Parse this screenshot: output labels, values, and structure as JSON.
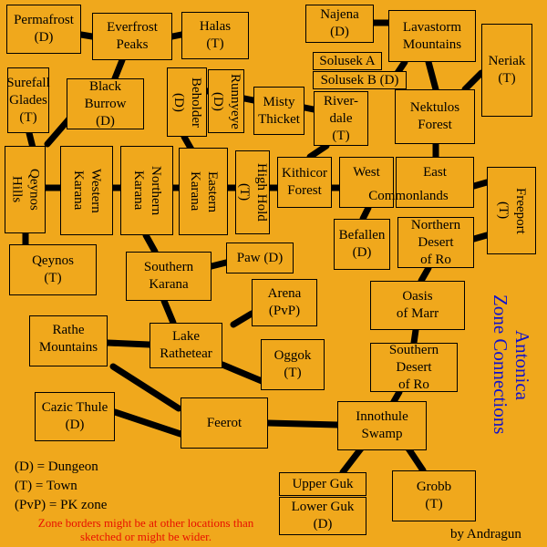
{
  "zones": {
    "permafrost": "Permafrost\n(D)",
    "everfrost": "Everfrost\nPeaks",
    "halas": "Halas\n(T)",
    "najena": "Najena\n(D)",
    "lavastorm": "Lavastorm\nMountains",
    "solusek_a": "Solusek A",
    "solusek_b": "Solusek B (D)",
    "neriak": "Neriak\n(T)",
    "surefall": "Surefall\nGlades\n(T)",
    "black_burrow": "Black\nBurrow\n(D)",
    "beholder": "Beholder\n(D)",
    "runnyeye": "Runnyeye\n(D)",
    "misty": "Misty\nThicket",
    "riverdale": "River-\ndale\n(T)",
    "nektulos": "Nektulos\nForest",
    "qeynos_hills": "Qeynos\nHills",
    "western_karana": "Western\nKarana",
    "northern_karana": "Northern\nKarana",
    "eastern_karana": "Eastern\nKarana",
    "highhold": "High Hold\n(T)",
    "kithicor": "Kithicor\nForest",
    "west_commonlands": "West",
    "east_commonlands": "East",
    "commonlands": "Commonlands",
    "freeport": "Freeport\n(T)",
    "befallen": "Befallen\n(D)",
    "northern_ro": "Northern\nDesert\nof Ro",
    "qeynos": "Qeynos\n(T)",
    "southern_karana": "Southern\nKarana",
    "paw": "Paw (D)",
    "arena": "Arena\n(PvP)",
    "oasis": "Oasis\nof Marr",
    "rathe_mountains": "Rathe\nMountains",
    "lake_rathetear": "Lake\nRathetear",
    "oggok": "Oggok\n(T)",
    "southern_ro": "Southern\nDesert\nof Ro",
    "cazic_thule": "Cazic Thule\n(D)",
    "feerot": "Feerot",
    "innothule": "Innothule\nSwamp",
    "upper_guk": "Upper Guk",
    "lower_guk": "Lower Guk\n(D)",
    "grobb": "Grobb\n(T)"
  },
  "title_line1": "Antonica",
  "title_line2": "Zone Connections",
  "legend": {
    "dungeon": "(D) = Dungeon",
    "town": "(T) = Town",
    "pvp": "(PvP) = PK zone"
  },
  "note": "Zone borders might be at other locations than sketched or might be wider.",
  "credit": "by Andragun",
  "colors": {
    "background": "#F0A81C",
    "title": "#1111CC",
    "note": "#E81000",
    "links": "#000000"
  }
}
